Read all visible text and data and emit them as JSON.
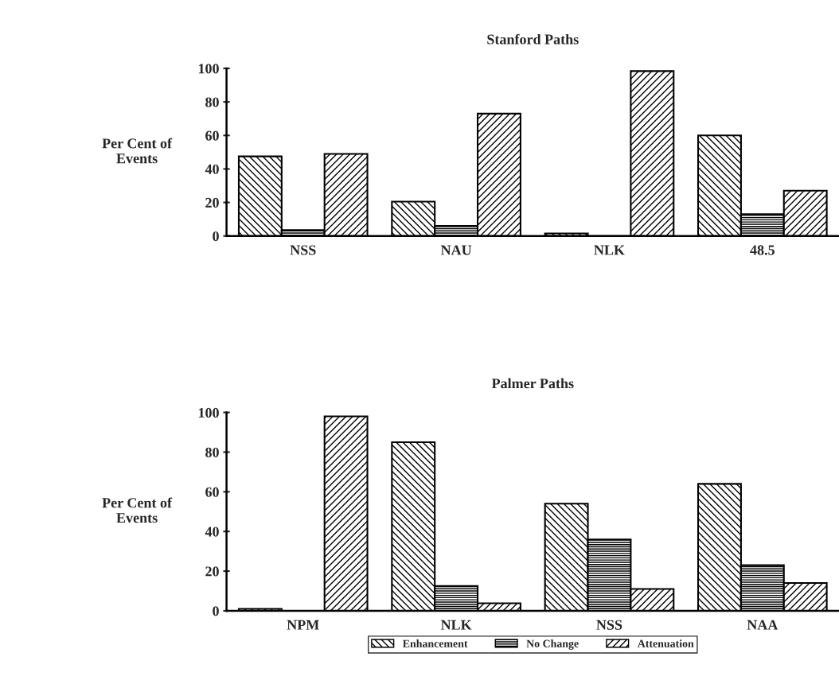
{
  "chart_data": [
    {
      "type": "bar",
      "title": "Stanford Paths",
      "ylabel": "Per Cent of\nEvents",
      "categories": [
        "NSS",
        "NAU",
        "NLK",
        "48.5"
      ],
      "ylim": [
        0,
        100
      ],
      "yticks": [
        0,
        20,
        40,
        60,
        80,
        100
      ],
      "grid": false,
      "legend": false,
      "series": [
        {
          "color": "#000000",
          "values": [
            47.5,
            20.5,
            1.5,
            60
          ]
        },
        {
          "color": "#000000",
          "values": [
            3.5,
            6,
            0,
            13
          ]
        },
        {
          "color": "#000000",
          "values": [
            49,
            73,
            98.4,
            27
          ]
        }
      ]
    },
    {
      "type": "bar",
      "title": "Palmer Paths",
      "ylabel": "Per Cent of\nEvents",
      "categories": [
        "NPM",
        "NLK",
        "NSS",
        "NAA"
      ],
      "ylim": [
        0,
        100
      ],
      "yticks": [
        0,
        20,
        40,
        60,
        80,
        100
      ],
      "grid": false,
      "legend": "bottom",
      "series": [
        {
          "name": "Enhancement",
          "color": "#000000",
          "values": [
            1,
            85,
            54,
            64
          ]
        },
        {
          "name": "No Change",
          "color": "#000000",
          "values": [
            null,
            12.5,
            36,
            23
          ]
        },
        {
          "name": "Attenuation",
          "color": "#000000",
          "values": [
            98,
            3.8,
            11,
            14
          ]
        }
      ]
    }
  ]
}
